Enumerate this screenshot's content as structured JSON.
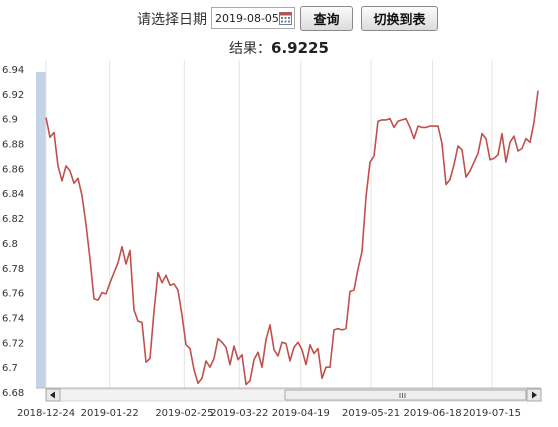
{
  "query": {
    "label": "请选择日期",
    "date_value": "2019-08-05",
    "query_button": "查询",
    "switch_button": "切换到表"
  },
  "result": {
    "label": "结果：",
    "value": "6.9225"
  },
  "colors": {
    "line": "#c0504d",
    "scrollbar_thumb": "#c5d3e6"
  },
  "chart_data": {
    "type": "line",
    "title": "",
    "xlabel": "",
    "ylabel": "",
    "ylim": [
      6.68,
      6.94
    ],
    "yticks": [
      "6.94",
      "6.92",
      "6.9",
      "6.88",
      "6.86",
      "6.84",
      "6.82",
      "6.8",
      "6.78",
      "6.76",
      "6.74",
      "6.72",
      "6.7",
      "6.68"
    ],
    "xticks": [
      "2018-12-24",
      "2019-01-22",
      "2019-02-25",
      "2019-03-22",
      "2019-04-19",
      "2019-05-21",
      "2019-06-18",
      "2019-07-15"
    ],
    "xrange": [
      "2018-12-24",
      "2019-08-05"
    ],
    "grid": "vertical",
    "series": [
      {
        "values": [
          6.901,
          6.885,
          6.889,
          6.862,
          6.85,
          6.862,
          6.858,
          6.848,
          6.852,
          6.838,
          6.815,
          6.787,
          6.755,
          6.754,
          6.76,
          6.759,
          6.768,
          6.776,
          6.784,
          6.797,
          6.783,
          6.794,
          6.746,
          6.737,
          6.736,
          6.704,
          6.707,
          6.745,
          6.776,
          6.768,
          6.774,
          6.766,
          6.767,
          6.762,
          6.742,
          6.718,
          6.715,
          6.698,
          6.687,
          6.691,
          6.705,
          6.7,
          6.707,
          6.723,
          6.72,
          6.716,
          6.702,
          6.717,
          6.706,
          6.71,
          6.686,
          6.689,
          6.706,
          6.712,
          6.7,
          6.722,
          6.734,
          6.714,
          6.709,
          6.72,
          6.719,
          6.705,
          6.716,
          6.72,
          6.714,
          6.702,
          6.718,
          6.711,
          6.715,
          6.691,
          6.7,
          6.7,
          6.73,
          6.731,
          6.73,
          6.731,
          6.761,
          6.762,
          6.779,
          6.793,
          6.837,
          6.865,
          6.87,
          6.898,
          6.899,
          6.899,
          6.9,
          6.893,
          6.898,
          6.899,
          6.9,
          6.893,
          6.884,
          6.894,
          6.893,
          6.893,
          6.894,
          6.894,
          6.894,
          6.88,
          6.847,
          6.851,
          6.863,
          6.878,
          6.875,
          6.853,
          6.858,
          6.865,
          6.872,
          6.888,
          6.884,
          6.867,
          6.868,
          6.871,
          6.888,
          6.865,
          6.881,
          6.886,
          6.874,
          6.876,
          6.884,
          6.881,
          6.897,
          6.9225
        ]
      }
    ]
  }
}
